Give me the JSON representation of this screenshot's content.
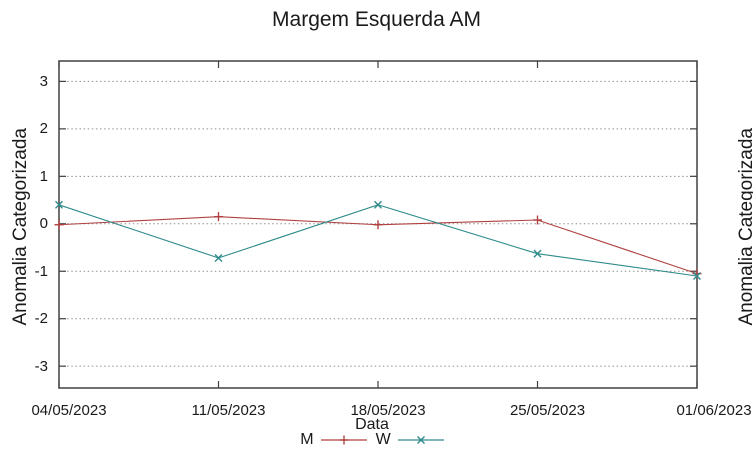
{
  "page": {
    "background": "#ffffff"
  },
  "chart_data": {
    "type": "line",
    "title": "Margem Esquerda AM",
    "xlabel": "Data",
    "ylabel": "Anomalia Categorizada",
    "x_tick_labels": [
      "04/05/2023",
      "11/05/2023",
      "18/05/2023",
      "25/05/2023",
      "01/06/2023"
    ],
    "y_tick_labels": [
      "3",
      "2",
      "1",
      "0",
      "-1",
      "-2",
      "-3"
    ],
    "y_tick_values": [
      3,
      2,
      1,
      0,
      -1,
      -2,
      -3
    ],
    "ylim": [
      -3.46,
      3.43
    ],
    "grid": true,
    "grid_style": "dotted",
    "legend_position": "below-center",
    "series": [
      {
        "name": "M",
        "marker": "plus",
        "color": "#b04040",
        "values": [
          -0.02,
          0.15,
          -0.02,
          0.08,
          -1.05
        ]
      },
      {
        "name": "W",
        "marker": "cross",
        "color": "#2f8b8b",
        "values": [
          0.4,
          -0.72,
          0.4,
          -0.63,
          -1.1
        ]
      }
    ],
    "axis_color": "#404040",
    "grid_color": "#909090"
  },
  "adjacent_chart": {
    "ylabel": "Anomalia Categorizada"
  }
}
